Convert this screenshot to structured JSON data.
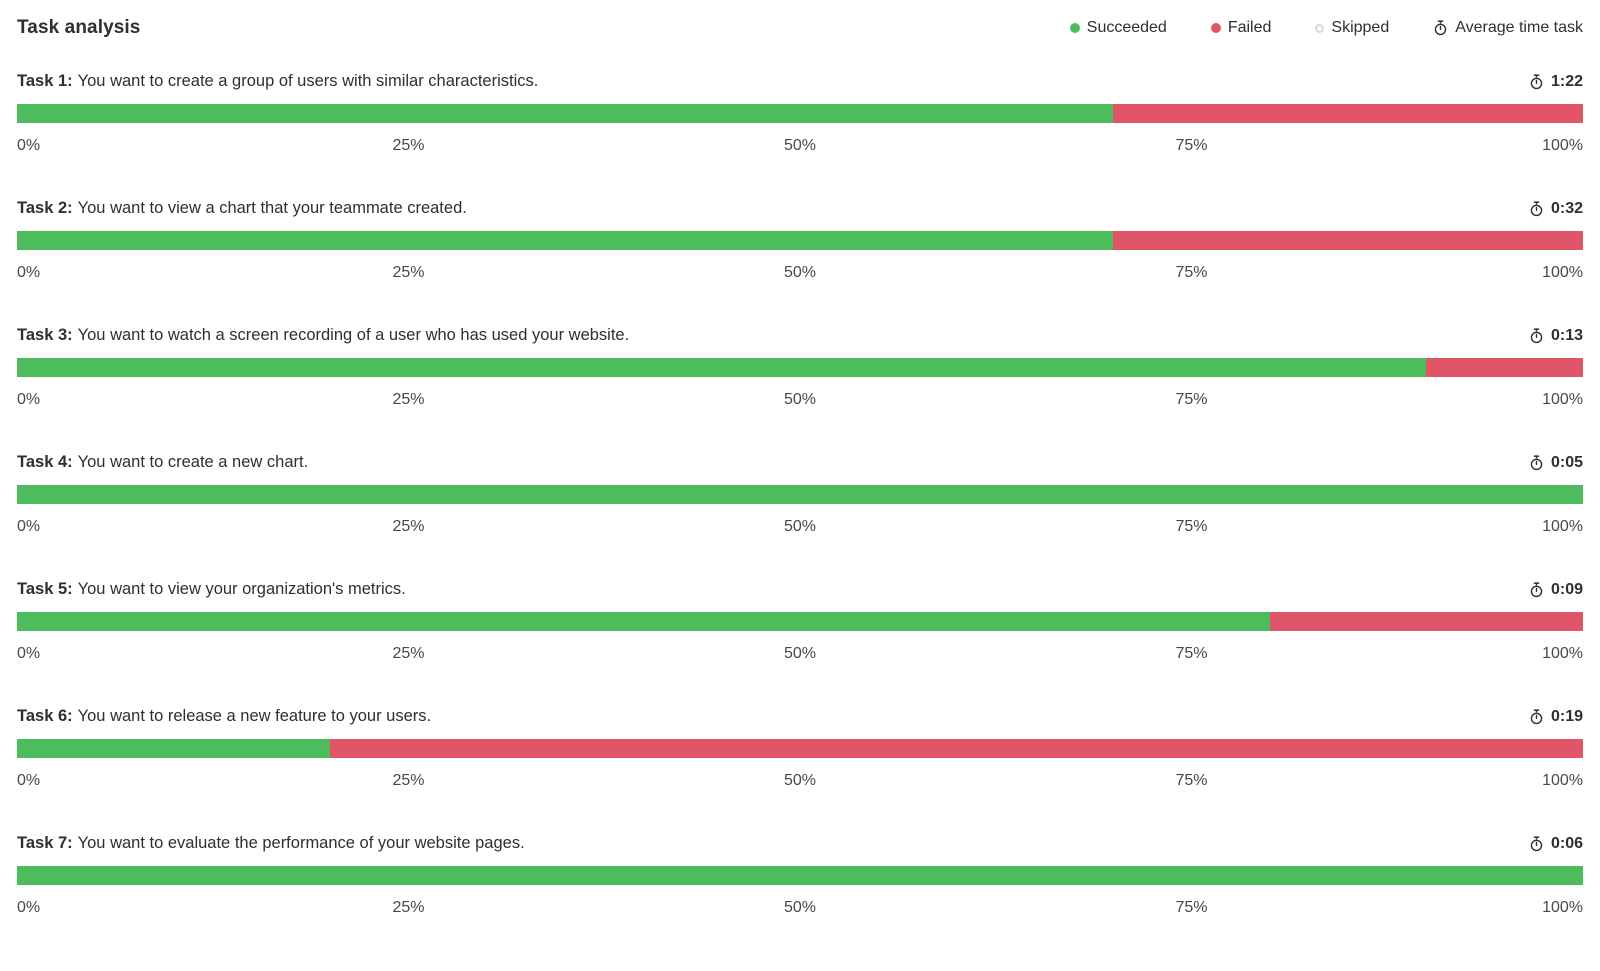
{
  "header": {
    "title": "Task analysis",
    "legend": [
      {
        "label": "Succeeded",
        "marker": "dot",
        "color": "#4CBC5C"
      },
      {
        "label": "Failed",
        "marker": "dot",
        "color": "#E05568"
      },
      {
        "label": "Skipped",
        "marker": "hollow",
        "color": "#D9D9DE"
      },
      {
        "label": "Average time task",
        "marker": "stopwatch",
        "color": "#2e2e36"
      }
    ]
  },
  "colors": {
    "succeeded": "#4CBC5C",
    "failed": "#E05568",
    "skipped": "#D9D9DE"
  },
  "chart_data": {
    "type": "bar",
    "variant": "horizontal-stacked-percentage",
    "title": "Task analysis",
    "xlim": [
      0,
      100
    ],
    "x_ticks": [
      "0%",
      "25%",
      "50%",
      "75%",
      "100%"
    ],
    "legend": [
      "Succeeded",
      "Failed",
      "Skipped"
    ],
    "legend_position": "top-right",
    "grid": false,
    "tasks": [
      {
        "name": "Task 1:",
        "description": "You want to create a group of users with similar characteristics.",
        "avg_time": "1:22",
        "succeeded_pct": 70,
        "failed_pct": 30,
        "skipped_pct": 0
      },
      {
        "name": "Task 2:",
        "description": "You want to view a chart that your teammate created.",
        "avg_time": "0:32",
        "succeeded_pct": 70,
        "failed_pct": 30,
        "skipped_pct": 0
      },
      {
        "name": "Task 3:",
        "description": "You want to watch a screen recording of a user who has used your website.",
        "avg_time": "0:13",
        "succeeded_pct": 90,
        "failed_pct": 10,
        "skipped_pct": 0
      },
      {
        "name": "Task 4:",
        "description": "You want to create a new chart.",
        "avg_time": "0:05",
        "succeeded_pct": 100,
        "failed_pct": 0,
        "skipped_pct": 0
      },
      {
        "name": "Task 5:",
        "description": "You want to view your organization's metrics.",
        "avg_time": "0:09",
        "succeeded_pct": 80,
        "failed_pct": 20,
        "skipped_pct": 0
      },
      {
        "name": "Task 6:",
        "description": "You want to release a new feature to your users.",
        "avg_time": "0:19",
        "succeeded_pct": 20,
        "failed_pct": 80,
        "skipped_pct": 0
      },
      {
        "name": "Task 7:",
        "description": "You want to evaluate the performance of your website pages.",
        "avg_time": "0:06",
        "succeeded_pct": 100,
        "failed_pct": 0,
        "skipped_pct": 0
      }
    ]
  }
}
